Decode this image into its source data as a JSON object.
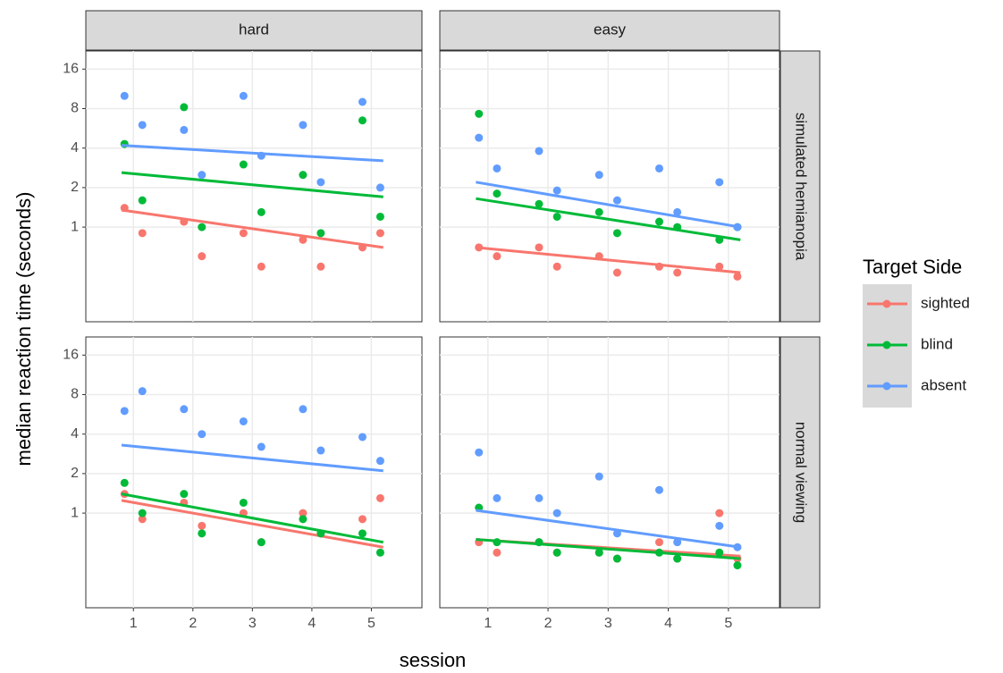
{
  "chart_data": {
    "type": "scatter",
    "x_label": "session",
    "y_label": "median reaction time (seconds)",
    "legend_title": "Target Side",
    "columns": [
      "hard",
      "easy"
    ],
    "rows": [
      "simulated hemianopia",
      "normal viewing"
    ],
    "ylog": true,
    "grid": true,
    "xlim": [
      0.2,
      5.85
    ],
    "xticks": [
      1,
      2,
      3,
      4,
      5
    ],
    "ylim": [
      0.19,
      22
    ],
    "yticks": [
      1,
      2,
      4,
      8,
      16
    ],
    "series": [
      {
        "name": "sighted",
        "color": "#f8766d"
      },
      {
        "name": "blind",
        "color": "#00ba38"
      },
      {
        "name": "absent",
        "color": "#619cff"
      }
    ],
    "panels": [
      {
        "series": [
          {
            "x": [
              0.85,
              1.15,
              1.85,
              2.15,
              2.85,
              3.15,
              3.85,
              4.15,
              4.85,
              5.15
            ],
            "values": [
              1.4,
              0.9,
              1.1,
              0.6,
              0.9,
              0.5,
              0.8,
              0.5,
              0.7,
              0.9
            ],
            "fit_x": [
              0.8,
              5.2
            ],
            "fit_values": [
              1.35,
              0.7
            ]
          },
          {
            "x": [
              0.85,
              1.15,
              1.85,
              2.15,
              2.85,
              3.15,
              3.85,
              4.15,
              4.85,
              5.15
            ],
            "values": [
              4.3,
              1.6,
              8.2,
              1.0,
              3.0,
              1.3,
              2.5,
              0.9,
              6.5,
              1.2
            ],
            "fit_x": [
              0.8,
              5.2
            ],
            "fit_values": [
              2.6,
              1.7
            ]
          },
          {
            "x": [
              0.85,
              1.15,
              1.85,
              2.15,
              2.85,
              3.15,
              3.85,
              4.15,
              4.85,
              5.15
            ],
            "values": [
              10,
              6,
              5.5,
              2.5,
              10,
              3.5,
              6,
              2.2,
              9,
              2
            ],
            "fit_x": [
              0.8,
              5.2
            ],
            "fit_values": [
              4.2,
              3.2
            ]
          }
        ]
      },
      {
        "series": [
          {
            "x": [
              0.85,
              1.15,
              1.85,
              2.15,
              2.85,
              3.15,
              3.85,
              4.15,
              4.85,
              5.15
            ],
            "values": [
              0.7,
              0.6,
              0.7,
              0.5,
              0.6,
              0.45,
              0.5,
              0.45,
              0.5,
              0.42
            ],
            "fit_x": [
              0.8,
              5.2
            ],
            "fit_values": [
              0.7,
              0.45
            ]
          },
          {
            "x": [
              0.85,
              1.15,
              1.85,
              2.15,
              2.85,
              3.15,
              3.85,
              4.15,
              4.85,
              5.15
            ],
            "values": [
              7.3,
              1.8,
              1.5,
              1.2,
              1.3,
              0.9,
              1.1,
              1.0,
              0.8,
              1.0
            ],
            "fit_x": [
              0.8,
              5.2
            ],
            "fit_values": [
              1.65,
              0.8
            ]
          },
          {
            "x": [
              0.85,
              1.15,
              1.85,
              2.15,
              2.85,
              3.15,
              3.85,
              4.15,
              4.85,
              5.15
            ],
            "values": [
              4.8,
              2.8,
              3.8,
              1.9,
              2.5,
              1.6,
              2.8,
              1.3,
              2.2,
              1.0
            ],
            "fit_x": [
              0.8,
              5.2
            ],
            "fit_values": [
              2.2,
              1.0
            ]
          }
        ]
      },
      {
        "series": [
          {
            "x": [
              0.85,
              1.15,
              1.85,
              2.15,
              2.85,
              3.15,
              3.85,
              4.15,
              4.85,
              5.15
            ],
            "values": [
              1.4,
              0.9,
              1.2,
              0.8,
              1.0,
              0.6,
              1.0,
              0.7,
              0.9,
              1.3
            ],
            "fit_x": [
              0.8,
              5.2
            ],
            "fit_values": [
              1.25,
              0.55
            ]
          },
          {
            "x": [
              0.85,
              1.15,
              1.85,
              2.15,
              2.85,
              3.15,
              3.85,
              4.15,
              4.85,
              5.15
            ],
            "values": [
              1.7,
              1.0,
              1.4,
              0.7,
              1.2,
              0.6,
              0.9,
              0.7,
              0.7,
              0.5
            ],
            "fit_x": [
              0.8,
              5.2
            ],
            "fit_values": [
              1.4,
              0.6
            ]
          },
          {
            "x": [
              0.85,
              1.15,
              1.85,
              2.15,
              2.85,
              3.15,
              3.85,
              4.15,
              4.85,
              5.15
            ],
            "values": [
              6,
              8.5,
              6.2,
              4,
              5,
              3.2,
              6.2,
              3,
              3.8,
              2.5
            ],
            "fit_x": [
              0.8,
              5.2
            ],
            "fit_values": [
              3.3,
              2.1
            ]
          }
        ]
      },
      {
        "series": [
          {
            "x": [
              0.85,
              1.15,
              1.85,
              2.15,
              2.85,
              3.15,
              3.85,
              4.15,
              4.85,
              5.15
            ],
            "values": [
              0.6,
              0.5,
              0.6,
              0.5,
              0.5,
              0.45,
              0.6,
              0.45,
              1.0,
              0.45
            ],
            "fit_x": [
              0.8,
              5.2
            ],
            "fit_values": [
              0.63,
              0.47
            ]
          },
          {
            "x": [
              0.85,
              1.15,
              1.85,
              2.15,
              2.85,
              3.15,
              3.85,
              4.15,
              4.85,
              5.15
            ],
            "values": [
              1.1,
              0.6,
              0.6,
              0.5,
              0.5,
              0.45,
              0.5,
              0.45,
              0.5,
              0.4
            ],
            "fit_x": [
              0.8,
              5.2
            ],
            "fit_values": [
              0.63,
              0.45
            ]
          },
          {
            "x": [
              0.85,
              1.15,
              1.85,
              2.15,
              2.85,
              3.15,
              3.85,
              4.15,
              4.85,
              5.15
            ],
            "values": [
              2.9,
              1.3,
              1.3,
              1.0,
              1.9,
              0.7,
              1.5,
              0.6,
              0.8,
              0.55
            ],
            "fit_x": [
              0.8,
              5.2
            ],
            "fit_values": [
              1.05,
              0.55
            ]
          }
        ]
      }
    ]
  }
}
